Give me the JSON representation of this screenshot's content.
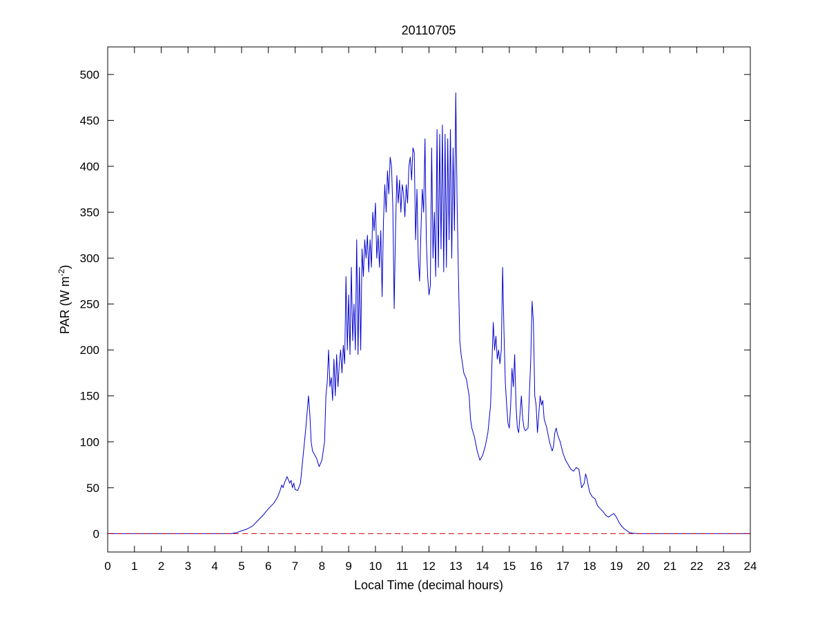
{
  "chart_data": {
    "type": "line",
    "title": "20110705",
    "xlabel": "Local Time (decimal hours)",
    "ylabel": "PAR (W m-2)",
    "xlim": [
      0,
      24
    ],
    "ylim": [
      -20,
      530
    ],
    "xticks": [
      0,
      1,
      2,
      3,
      4,
      5,
      6,
      7,
      8,
      9,
      10,
      11,
      12,
      13,
      14,
      15,
      16,
      17,
      18,
      19,
      20,
      21,
      22,
      23,
      24
    ],
    "yticks": [
      0,
      50,
      100,
      150,
      200,
      250,
      300,
      350,
      400,
      450,
      500
    ],
    "grid": false,
    "legend": "none",
    "series": [
      {
        "color": "#0000cc",
        "style": "solid",
        "points": [
          [
            0,
            0
          ],
          [
            4.6,
            0
          ],
          [
            4.8,
            1
          ],
          [
            5.0,
            3
          ],
          [
            5.2,
            5
          ],
          [
            5.4,
            8
          ],
          [
            5.6,
            14
          ],
          [
            5.8,
            20
          ],
          [
            6.0,
            27
          ],
          [
            6.2,
            33
          ],
          [
            6.35,
            40
          ],
          [
            6.45,
            48
          ],
          [
            6.5,
            53
          ],
          [
            6.55,
            50
          ],
          [
            6.6,
            55
          ],
          [
            6.7,
            62
          ],
          [
            6.8,
            55
          ],
          [
            6.85,
            58
          ],
          [
            6.9,
            50
          ],
          [
            6.95,
            55
          ],
          [
            7.0,
            48
          ],
          [
            7.1,
            47
          ],
          [
            7.2,
            55
          ],
          [
            7.3,
            85
          ],
          [
            7.4,
            115
          ],
          [
            7.5,
            150
          ],
          [
            7.55,
            130
          ],
          [
            7.6,
            100
          ],
          [
            7.65,
            90
          ],
          [
            7.8,
            82
          ],
          [
            7.9,
            73
          ],
          [
            8.0,
            80
          ],
          [
            8.1,
            100
          ],
          [
            8.15,
            150
          ],
          [
            8.2,
            165
          ],
          [
            8.25,
            200
          ],
          [
            8.3,
            160
          ],
          [
            8.35,
            170
          ],
          [
            8.4,
            145
          ],
          [
            8.45,
            190
          ],
          [
            8.5,
            150
          ],
          [
            8.55,
            195
          ],
          [
            8.6,
            160
          ],
          [
            8.65,
            185
          ],
          [
            8.7,
            200
          ],
          [
            8.75,
            175
          ],
          [
            8.8,
            205
          ],
          [
            8.85,
            185
          ],
          [
            8.9,
            280
          ],
          [
            8.95,
            200
          ],
          [
            9.0,
            260
          ],
          [
            9.05,
            195
          ],
          [
            9.1,
            290
          ],
          [
            9.15,
            210
          ],
          [
            9.2,
            250
          ],
          [
            9.25,
            200
          ],
          [
            9.3,
            320
          ],
          [
            9.35,
            195
          ],
          [
            9.4,
            290
          ],
          [
            9.45,
            200
          ],
          [
            9.5,
            310
          ],
          [
            9.55,
            280
          ],
          [
            9.6,
            320
          ],
          [
            9.65,
            300
          ],
          [
            9.7,
            325
          ],
          [
            9.75,
            285
          ],
          [
            9.8,
            320
          ],
          [
            9.85,
            290
          ],
          [
            9.9,
            350
          ],
          [
            9.95,
            330
          ],
          [
            10.0,
            360
          ],
          [
            10.05,
            300
          ],
          [
            10.1,
            325
          ],
          [
            10.15,
            290
          ],
          [
            10.2,
            330
          ],
          [
            10.25,
            258
          ],
          [
            10.3,
            340
          ],
          [
            10.35,
            380
          ],
          [
            10.4,
            350
          ],
          [
            10.45,
            395
          ],
          [
            10.5,
            370
          ],
          [
            10.55,
            410
          ],
          [
            10.6,
            400
          ],
          [
            10.65,
            355
          ],
          [
            10.7,
            245
          ],
          [
            10.75,
            330
          ],
          [
            10.8,
            390
          ],
          [
            10.85,
            360
          ],
          [
            10.9,
            385
          ],
          [
            10.95,
            350
          ],
          [
            11.0,
            380
          ],
          [
            11.05,
            370
          ],
          [
            11.1,
            345
          ],
          [
            11.15,
            380
          ],
          [
            11.2,
            360
          ],
          [
            11.25,
            400
          ],
          [
            11.3,
            410
          ],
          [
            11.35,
            385
          ],
          [
            11.4,
            420
          ],
          [
            11.45,
            415
          ],
          [
            11.5,
            320
          ],
          [
            11.55,
            375
          ],
          [
            11.6,
            300
          ],
          [
            11.65,
            275
          ],
          [
            11.7,
            330
          ],
          [
            11.75,
            375
          ],
          [
            11.8,
            350
          ],
          [
            11.85,
            430
          ],
          [
            11.9,
            320
          ],
          [
            11.95,
            280
          ],
          [
            12.0,
            260
          ],
          [
            12.05,
            270
          ],
          [
            12.1,
            420
          ],
          [
            12.15,
            300
          ],
          [
            12.2,
            350
          ],
          [
            12.25,
            280
          ],
          [
            12.3,
            440
          ],
          [
            12.35,
            290
          ],
          [
            12.4,
            435
          ],
          [
            12.45,
            310
          ],
          [
            12.5,
            445
          ],
          [
            12.55,
            285
          ],
          [
            12.6,
            435
          ],
          [
            12.65,
            290
          ],
          [
            12.7,
            430
          ],
          [
            12.75,
            320
          ],
          [
            12.8,
            440
          ],
          [
            12.85,
            300
          ],
          [
            12.9,
            420
          ],
          [
            12.95,
            330
          ],
          [
            13.0,
            480
          ],
          [
            13.05,
            360
          ],
          [
            13.1,
            280
          ],
          [
            13.15,
            210
          ],
          [
            13.2,
            195
          ],
          [
            13.3,
            175
          ],
          [
            13.4,
            168
          ],
          [
            13.5,
            150
          ],
          [
            13.55,
            125
          ],
          [
            13.6,
            115
          ],
          [
            13.7,
            105
          ],
          [
            13.8,
            90
          ],
          [
            13.9,
            80
          ],
          [
            14.0,
            85
          ],
          [
            14.1,
            95
          ],
          [
            14.2,
            110
          ],
          [
            14.3,
            140
          ],
          [
            14.4,
            230
          ],
          [
            14.45,
            200
          ],
          [
            14.5,
            215
          ],
          [
            14.55,
            190
          ],
          [
            14.6,
            200
          ],
          [
            14.65,
            185
          ],
          [
            14.7,
            200
          ],
          [
            14.75,
            290
          ],
          [
            14.8,
            220
          ],
          [
            14.85,
            165
          ],
          [
            14.9,
            140
          ],
          [
            14.95,
            120
          ],
          [
            15.0,
            115
          ],
          [
            15.05,
            140
          ],
          [
            15.1,
            180
          ],
          [
            15.15,
            160
          ],
          [
            15.2,
            195
          ],
          [
            15.25,
            140
          ],
          [
            15.3,
            115
          ],
          [
            15.35,
            110
          ],
          [
            15.4,
            130
          ],
          [
            15.45,
            150
          ],
          [
            15.5,
            125
          ],
          [
            15.55,
            115
          ],
          [
            15.6,
            112
          ],
          [
            15.7,
            115
          ],
          [
            15.8,
            190
          ],
          [
            15.85,
            253
          ],
          [
            15.9,
            230
          ],
          [
            15.95,
            150
          ],
          [
            16.0,
            140
          ],
          [
            16.05,
            110
          ],
          [
            16.1,
            130
          ],
          [
            16.15,
            150
          ],
          [
            16.2,
            140
          ],
          [
            16.25,
            145
          ],
          [
            16.3,
            125
          ],
          [
            16.35,
            120
          ],
          [
            16.4,
            115
          ],
          [
            16.5,
            100
          ],
          [
            16.6,
            90
          ],
          [
            16.65,
            95
          ],
          [
            16.7,
            110
          ],
          [
            16.75,
            115
          ],
          [
            16.8,
            108
          ],
          [
            16.9,
            100
          ],
          [
            17.0,
            88
          ],
          [
            17.1,
            80
          ],
          [
            17.2,
            75
          ],
          [
            17.3,
            70
          ],
          [
            17.4,
            68
          ],
          [
            17.5,
            72
          ],
          [
            17.6,
            70
          ],
          [
            17.65,
            60
          ],
          [
            17.7,
            50
          ],
          [
            17.8,
            55
          ],
          [
            17.85,
            65
          ],
          [
            17.9,
            60
          ],
          [
            17.95,
            52
          ],
          [
            18.0,
            45
          ],
          [
            18.1,
            40
          ],
          [
            18.2,
            38
          ],
          [
            18.3,
            30
          ],
          [
            18.4,
            27
          ],
          [
            18.5,
            24
          ],
          [
            18.6,
            20
          ],
          [
            18.7,
            18
          ],
          [
            18.8,
            20
          ],
          [
            18.9,
            22
          ],
          [
            19.0,
            18
          ],
          [
            19.1,
            12
          ],
          [
            19.2,
            8
          ],
          [
            19.3,
            5
          ],
          [
            19.4,
            3
          ],
          [
            19.5,
            1
          ],
          [
            19.6,
            0.5
          ],
          [
            19.8,
            0
          ],
          [
            24,
            0
          ]
        ]
      },
      {
        "color": "#cc0000",
        "style": "dashed",
        "points": [
          [
            0,
            0
          ],
          [
            24,
            0
          ]
        ]
      }
    ]
  }
}
